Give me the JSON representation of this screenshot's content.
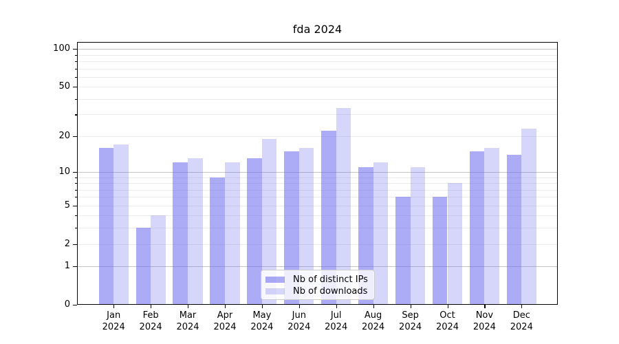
{
  "chart_data": {
    "type": "bar",
    "title": "fda 2024",
    "categories": [
      "Jan 2024",
      "Feb 2024",
      "Mar 2024",
      "Apr 2024",
      "May 2024",
      "Jun 2024",
      "Jul 2024",
      "Aug 2024",
      "Sep 2024",
      "Oct 2024",
      "Nov 2024",
      "Dec 2024"
    ],
    "series": [
      {
        "name": "Nb of distinct IPs",
        "color": "rgba(102,102,238,0.55)",
        "values": [
          16,
          3,
          12,
          9,
          13,
          15,
          22,
          11,
          6,
          6,
          15,
          14
        ]
      },
      {
        "name": "Nb of downloads",
        "color": "rgba(102,102,238,0.27)",
        "values": [
          17,
          4,
          13,
          12,
          19,
          16,
          34,
          12,
          11,
          8,
          16,
          23
        ]
      }
    ],
    "xlabel": "",
    "ylabel": "",
    "yscale": "log(value+1)",
    "ylim": [
      0,
      113
    ],
    "yticks": [
      0,
      1,
      2,
      5,
      10,
      20,
      50,
      100
    ],
    "major_grid_values": [
      1,
      10,
      100
    ],
    "minor_grid_values": [
      2,
      3,
      4,
      5,
      6,
      7,
      8,
      9,
      20,
      30,
      40,
      50,
      60,
      70,
      80,
      90
    ],
    "grid": true,
    "legend_position": "lower center"
  },
  "colors": {
    "grid_major": "#c3c3c3",
    "grid_minor": "#ebebeb",
    "axis": "#000000",
    "background": "#ffffff"
  }
}
